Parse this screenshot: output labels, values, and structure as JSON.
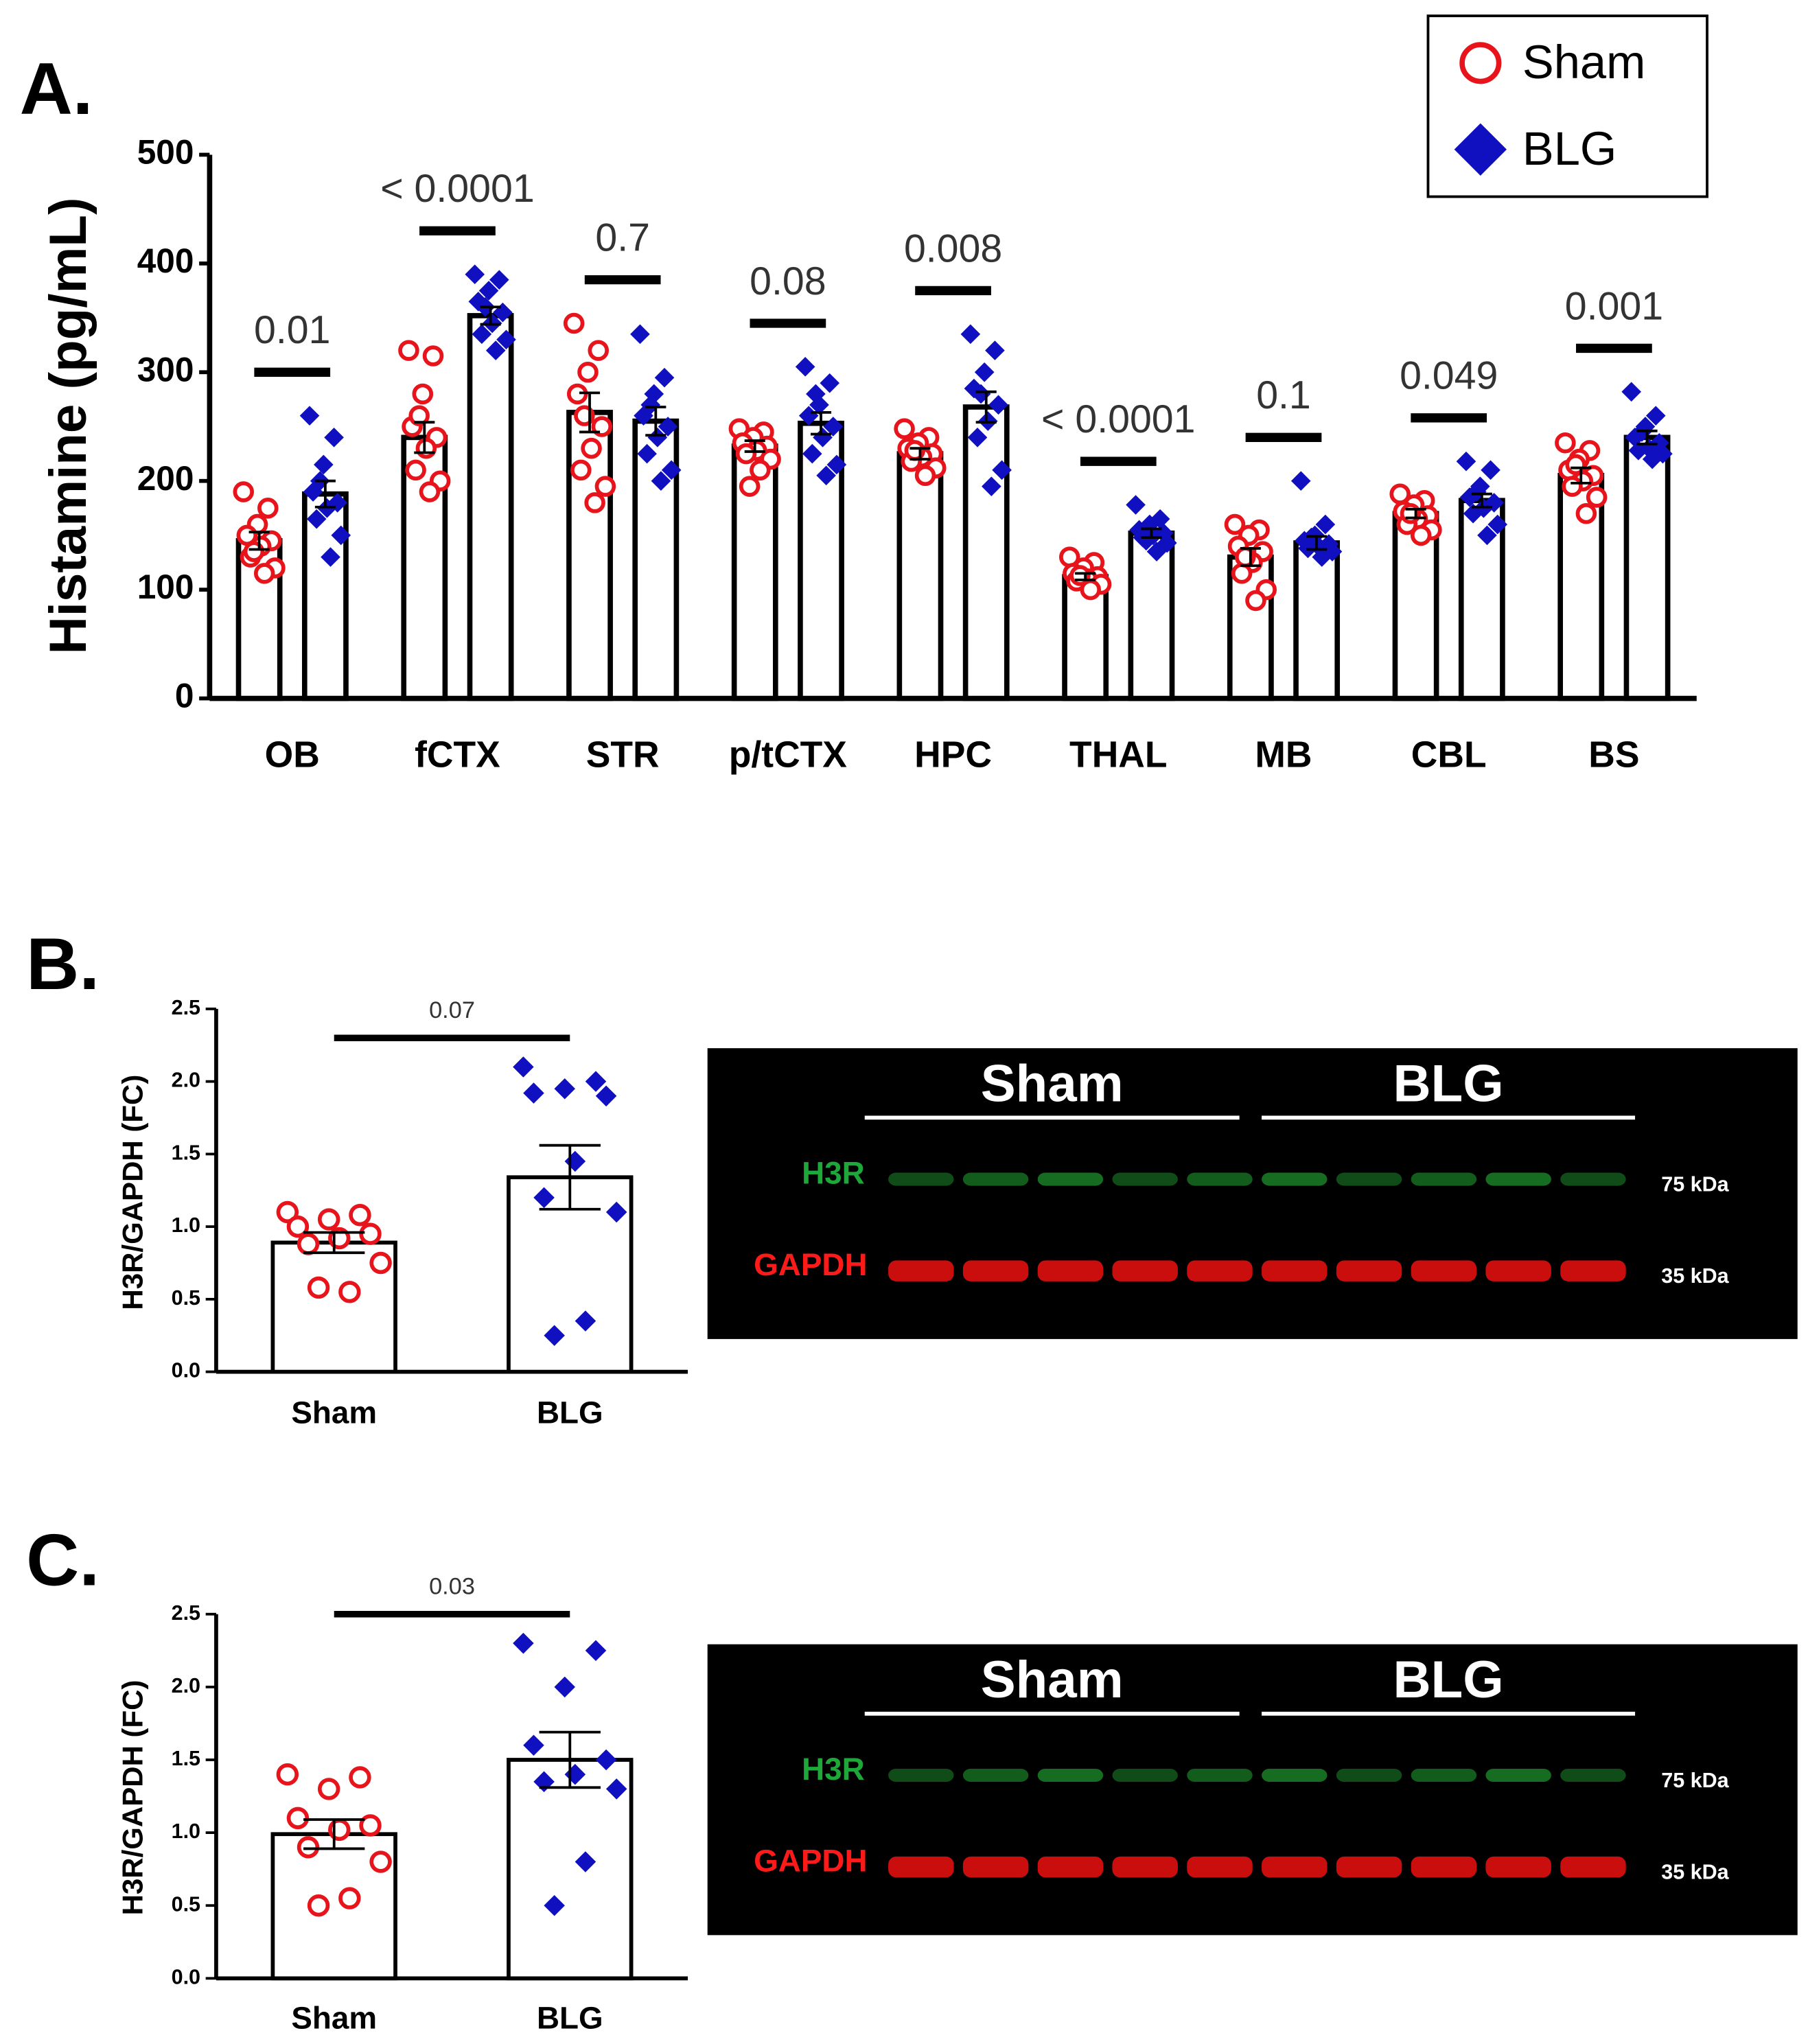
{
  "chart_data": [
    {
      "type": "bar",
      "label": "A.",
      "ylabel": "Histamine (pg/mL)",
      "categories": [
        "OB",
        "fCTX",
        "STR",
        "p/tCTX",
        "HPC",
        "THAL",
        "MB",
        "CBL",
        "BS"
      ],
      "annotations": [
        "0.01",
        "< 0.0001",
        "0.7",
        "0.08",
        "0.008",
        "< 0.0001",
        "0.1",
        "0.049",
        "0.001"
      ],
      "legend": "upper right",
      "series": [
        {
          "name": "Sham",
          "color": "#e8141b",
          "marker": "circle",
          "values": [
            145,
            240,
            263,
            232,
            225,
            112,
            130,
            170,
            205
          ],
          "errors": [
            8,
            14,
            18,
            5,
            5,
            3,
            8,
            4,
            7
          ],
          "points": [
            [
              190,
              175,
              160,
              150,
              145,
              140,
              130,
              120,
              115,
              135
            ],
            [
              320,
              315,
              280,
              250,
              240,
              230,
              210,
              200,
              190,
              260
            ],
            [
              345,
              320,
              300,
              280,
              250,
              230,
              210,
              195,
              180,
              260
            ],
            [
              248,
              245,
              240,
              235,
              232,
              228,
              225,
              220,
              210,
              195
            ],
            [
              248,
              240,
              235,
              230,
              225,
              222,
              218,
              212,
              205,
              228
            ],
            [
              130,
              125,
              120,
              115,
              112,
              110,
              108,
              105,
              100,
              113
            ],
            [
              160,
              155,
              150,
              140,
              135,
              125,
              115,
              100,
              90,
              130
            ],
            [
              188,
              182,
              178,
              172,
              168,
              165,
              160,
              155,
              150,
              170
            ],
            [
              235,
              228,
              220,
              210,
              205,
              200,
              195,
              185,
              170,
              215
            ]
          ]
        },
        {
          "name": "BLG",
          "color": "#1010c0",
          "marker": "diamond",
          "values": [
            188,
            352,
            255,
            253,
            268,
            152,
            143,
            182,
            240
          ],
          "errors": [
            12,
            8,
            13,
            10,
            14,
            4,
            6,
            6,
            6
          ],
          "points": [
            [
              260,
              240,
              215,
              190,
              180,
              175,
              165,
              150,
              130,
              200
            ],
            [
              390,
              385,
              375,
              365,
              355,
              345,
              335,
              330,
              320,
              360
            ],
            [
              335,
              295,
              280,
              260,
              250,
              240,
              225,
              210,
              200,
              270
            ],
            [
              305,
              290,
              270,
              260,
              250,
              240,
              225,
              215,
              205,
              280
            ],
            [
              335,
              320,
              300,
              285,
              270,
              255,
              240,
              210,
              195,
              280
            ],
            [
              178,
              165,
              160,
              155,
              152,
              150,
              148,
              143,
              135,
              145
            ],
            [
              200,
              160,
              150,
              145,
              142,
              140,
              138,
              135,
              130,
              148
            ],
            [
              218,
              210,
              195,
              185,
              180,
              175,
              170,
              160,
              150,
              190
            ],
            [
              282,
              260,
              250,
              240,
              235,
              230,
              228,
              225,
              220,
              245
            ]
          ]
        }
      ],
      "ylim": [
        0,
        500
      ],
      "yticks": [
        0,
        100,
        200,
        300,
        400,
        500
      ]
    },
    {
      "type": "bar",
      "label": "B.",
      "ylabel": "H3R/GAPDH (FC)",
      "categories": [
        "Sham",
        "BLG"
      ],
      "annotation": "0.07",
      "colors": [
        "#e8141b",
        "#1010c0"
      ],
      "markers": [
        "circle",
        "diamond"
      ],
      "values": [
        0.89,
        1.34
      ],
      "errors": [
        0.07,
        0.22
      ],
      "points": [
        [
          1.1,
          1.08,
          1.05,
          1.0,
          0.95,
          0.92,
          0.88,
          0.75,
          0.55,
          0.58
        ],
        [
          2.1,
          2.0,
          1.95,
          1.92,
          1.9,
          1.45,
          1.2,
          1.1,
          0.35,
          0.25
        ]
      ],
      "ylim": [
        0,
        2.5
      ],
      "yticks": [
        {
          "value": 0,
          "label": "0.0"
        },
        0.5,
        {
          "value": 1,
          "label": "1.0"
        },
        1.5,
        {
          "value": 2,
          "label": "2.0"
        },
        2.5
      ],
      "blot": {
        "groups": [
          "Sham",
          "BLG"
        ],
        "bands": [
          {
            "name": "H3R",
            "size": "75 kDa"
          },
          {
            "name": "GAPDH",
            "size": "35 kDa"
          }
        ]
      }
    },
    {
      "type": "bar",
      "label": "C.",
      "ylabel": "H3R/GAPDH (FC)",
      "categories": [
        "Sham",
        "BLG"
      ],
      "annotation": "0.03",
      "colors": [
        "#e8141b",
        "#1010c0"
      ],
      "markers": [
        "circle",
        "diamond"
      ],
      "values": [
        0.99,
        1.5
      ],
      "errors": [
        0.1,
        0.19
      ],
      "points": [
        [
          1.4,
          1.38,
          1.3,
          1.1,
          1.05,
          1.02,
          0.9,
          0.8,
          0.55,
          0.5
        ],
        [
          2.3,
          2.25,
          2.0,
          1.6,
          1.5,
          1.4,
          1.35,
          1.3,
          0.8,
          0.5
        ]
      ],
      "ylim": [
        0,
        2.5
      ],
      "yticks": [
        {
          "value": 0,
          "label": "0.0"
        },
        0.5,
        {
          "value": 1,
          "label": "1.0"
        },
        1.5,
        {
          "value": 2,
          "label": "2.0"
        },
        2.5
      ],
      "blot": {
        "groups": [
          "Sham",
          "BLG"
        ],
        "bands": [
          {
            "name": "H3R",
            "size": "75 kDa"
          },
          {
            "name": "GAPDH",
            "size": "35 kDa"
          }
        ]
      }
    }
  ]
}
